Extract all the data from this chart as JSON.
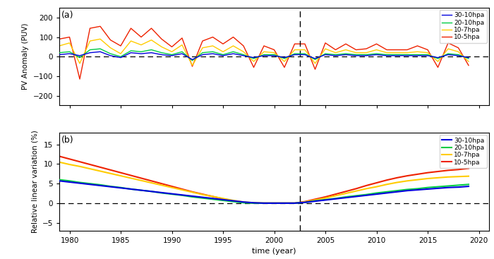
{
  "years": [
    1979,
    1980,
    1981,
    1982,
    1983,
    1984,
    1985,
    1986,
    1987,
    1988,
    1989,
    1990,
    1991,
    1992,
    1993,
    1994,
    1995,
    1996,
    1997,
    1998,
    1999,
    2000,
    2001,
    2002,
    2003,
    2004,
    2005,
    2006,
    2007,
    2008,
    2009,
    2010,
    2011,
    2012,
    2013,
    2014,
    2015,
    2016,
    2017,
    2018,
    2019
  ],
  "pv_30_10": [
    10,
    15,
    5,
    20,
    25,
    5,
    -5,
    20,
    15,
    20,
    10,
    5,
    15,
    -15,
    10,
    15,
    5,
    15,
    5,
    -5,
    5,
    5,
    -5,
    10,
    10,
    -10,
    10,
    5,
    10,
    5,
    5,
    10,
    5,
    5,
    5,
    5,
    5,
    -5,
    10,
    5,
    -5
  ],
  "pv_20_10": [
    20,
    25,
    -5,
    35,
    40,
    15,
    0,
    30,
    25,
    35,
    20,
    10,
    25,
    -20,
    20,
    25,
    10,
    25,
    10,
    -10,
    10,
    10,
    -10,
    15,
    15,
    -15,
    15,
    10,
    15,
    10,
    10,
    15,
    10,
    10,
    10,
    10,
    10,
    -10,
    15,
    10,
    -10
  ],
  "pv_10_7": [
    55,
    70,
    -35,
    80,
    90,
    45,
    15,
    80,
    60,
    85,
    50,
    25,
    60,
    -45,
    45,
    55,
    25,
    55,
    25,
    -25,
    25,
    20,
    -25,
    35,
    35,
    -35,
    40,
    20,
    35,
    20,
    20,
    35,
    20,
    20,
    20,
    25,
    20,
    -25,
    40,
    25,
    -25
  ],
  "pv_10_5": [
    90,
    100,
    -115,
    145,
    155,
    85,
    55,
    145,
    100,
    145,
    90,
    50,
    95,
    -50,
    80,
    100,
    65,
    100,
    55,
    -55,
    55,
    35,
    -55,
    65,
    65,
    -65,
    70,
    35,
    65,
    35,
    40,
    65,
    35,
    35,
    35,
    55,
    35,
    -55,
    70,
    45,
    -45
  ],
  "rlv_30_10": [
    5.7,
    5.4,
    5.1,
    4.8,
    4.5,
    4.2,
    3.9,
    3.6,
    3.3,
    3.0,
    2.7,
    2.4,
    2.1,
    1.8,
    1.5,
    1.2,
    0.9,
    0.6,
    0.3,
    0.1,
    0.0,
    0.0,
    0.0,
    0.0,
    0.2,
    0.5,
    0.8,
    1.1,
    1.4,
    1.7,
    2.0,
    2.3,
    2.6,
    2.9,
    3.2,
    3.4,
    3.6,
    3.8,
    4.0,
    4.1,
    4.3
  ],
  "rlv_20_10": [
    6.0,
    5.7,
    5.3,
    5.0,
    4.7,
    4.3,
    4.0,
    3.6,
    3.3,
    3.0,
    2.6,
    2.3,
    2.0,
    1.6,
    1.3,
    1.0,
    0.7,
    0.4,
    0.1,
    0.0,
    0.0,
    0.0,
    0.0,
    0.0,
    0.2,
    0.6,
    0.9,
    1.2,
    1.6,
    1.9,
    2.2,
    2.6,
    2.9,
    3.2,
    3.5,
    3.7,
    4.0,
    4.2,
    4.4,
    4.6,
    4.8
  ],
  "rlv_10_7": [
    10.5,
    9.9,
    9.4,
    8.8,
    8.2,
    7.6,
    7.0,
    6.4,
    5.8,
    5.2,
    4.6,
    4.0,
    3.4,
    2.8,
    2.2,
    1.7,
    1.2,
    0.7,
    0.3,
    0.1,
    0.0,
    0.0,
    0.0,
    0.0,
    0.3,
    0.8,
    1.3,
    1.9,
    2.5,
    3.1,
    3.7,
    4.2,
    4.8,
    5.3,
    5.7,
    6.0,
    6.3,
    6.5,
    6.7,
    6.8,
    6.9
  ],
  "rlv_10_5": [
    12.0,
    11.3,
    10.6,
    9.9,
    9.2,
    8.5,
    7.8,
    7.1,
    6.4,
    5.7,
    5.0,
    4.3,
    3.6,
    2.9,
    2.3,
    1.7,
    1.1,
    0.6,
    0.2,
    0.0,
    0.0,
    0.0,
    0.0,
    0.0,
    0.4,
    1.0,
    1.6,
    2.3,
    3.0,
    3.7,
    4.5,
    5.2,
    5.9,
    6.5,
    7.0,
    7.4,
    7.8,
    8.1,
    8.4,
    8.6,
    8.9
  ],
  "colors": {
    "30_10": "#0000dd",
    "20_10": "#00cc44",
    "10_7": "#ffcc00",
    "10_5": "#ee2200"
  },
  "vline_x": 2002.5,
  "panel_a_label": "(a)",
  "panel_b_label": "(b)",
  "ylabel_a": "PV Anomaly (PUV)",
  "ylabel_b": "Relative linear variation (%)",
  "xlabel": "time (year)",
  "ylim_a": [
    -250,
    250
  ],
  "ylim_b": [
    -7,
    18
  ],
  "yticks_a": [
    -200,
    -100,
    0,
    100,
    200
  ],
  "yticks_b": [
    -5,
    0,
    5,
    10,
    15
  ],
  "xticks": [
    1980,
    1985,
    1990,
    1995,
    2000,
    2005,
    2010,
    2015,
    2020
  ],
  "legend_labels": [
    "30-10hpa",
    "20-10hpa",
    "10-7hpa",
    "10-5hpa"
  ],
  "linewidth_a": 1.0,
  "linewidth_b": 1.5,
  "figsize": [
    7.0,
    3.67
  ],
  "dpi": 100
}
